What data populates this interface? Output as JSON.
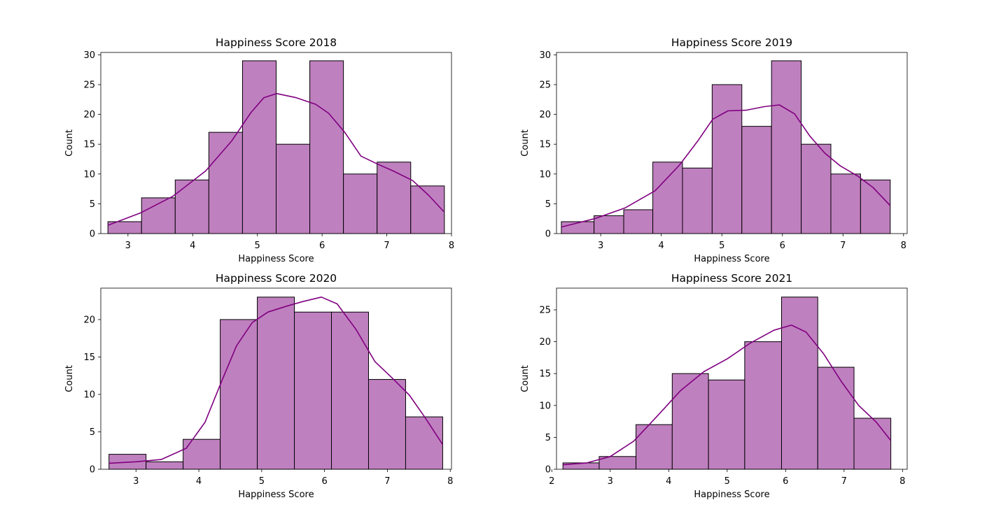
{
  "chart_data": [
    {
      "type": "bar",
      "title": "Happiness Score 2018",
      "xlabel": "Happiness Score",
      "ylabel": "Count",
      "bin_edges": [
        2.69,
        3.21,
        3.73,
        4.25,
        4.77,
        5.29,
        5.81,
        6.33,
        6.85,
        7.37,
        7.89
      ],
      "values": [
        2,
        6,
        9,
        17,
        29,
        15,
        29,
        10,
        12,
        8
      ],
      "kde": [
        [
          2.69,
          1.4
        ],
        [
          3.2,
          3.5
        ],
        [
          3.7,
          6.3
        ],
        [
          4.2,
          10.5
        ],
        [
          4.6,
          15.5
        ],
        [
          4.9,
          20.3
        ],
        [
          5.1,
          22.8
        ],
        [
          5.3,
          23.5
        ],
        [
          5.6,
          22.8
        ],
        [
          5.9,
          21.7
        ],
        [
          6.1,
          20.2
        ],
        [
          6.35,
          17.0
        ],
        [
          6.6,
          13.0
        ],
        [
          6.85,
          11.7
        ],
        [
          7.1,
          10.5
        ],
        [
          7.4,
          8.9
        ],
        [
          7.65,
          6.4
        ],
        [
          7.88,
          3.7
        ]
      ],
      "xlim": [
        2.58,
        8.0
      ],
      "ylim": [
        0,
        30.4
      ],
      "xticks": [
        3,
        4,
        5,
        6,
        7,
        8
      ],
      "yticks": [
        0,
        5,
        10,
        15,
        20,
        25,
        30
      ],
      "color": "#bf80bf",
      "kde_color": "#800080"
    },
    {
      "type": "bar",
      "title": "Happiness Score 2019",
      "xlabel": "Happiness Score",
      "ylabel": "Count",
      "bin_edges": [
        2.35,
        2.89,
        3.38,
        3.86,
        4.35,
        4.84,
        5.33,
        5.82,
        6.31,
        6.8,
        7.29,
        7.78
      ],
      "values": [
        2,
        3,
        4,
        12,
        11,
        25,
        18,
        29,
        15,
        10,
        9
      ],
      "kde": [
        [
          2.35,
          1.1
        ],
        [
          2.9,
          2.5
        ],
        [
          3.4,
          4.3
        ],
        [
          3.9,
          7.2
        ],
        [
          4.3,
          11.5
        ],
        [
          4.6,
          15.5
        ],
        [
          4.85,
          19.2
        ],
        [
          5.1,
          20.6
        ],
        [
          5.4,
          20.7
        ],
        [
          5.7,
          21.3
        ],
        [
          5.95,
          21.6
        ],
        [
          6.2,
          20.1
        ],
        [
          6.45,
          16.4
        ],
        [
          6.7,
          13.5
        ],
        [
          6.95,
          11.4
        ],
        [
          7.25,
          9.6
        ],
        [
          7.5,
          7.7
        ],
        [
          7.78,
          4.7
        ]
      ],
      "xlim": [
        2.27,
        8.06
      ],
      "ylim": [
        0,
        30.4
      ],
      "xticks": [
        3,
        4,
        5,
        6,
        7,
        8
      ],
      "yticks": [
        0,
        5,
        10,
        15,
        20,
        25,
        30
      ],
      "color": "#bf80bf",
      "kde_color": "#800080"
    },
    {
      "type": "bar",
      "title": "Happiness Score 2020",
      "xlabel": "Happiness Score",
      "ylabel": "Count",
      "bin_edges": [
        2.57,
        3.16,
        3.75,
        4.34,
        4.93,
        5.52,
        6.11,
        6.7,
        7.29,
        7.88
      ],
      "values": [
        2,
        1,
        4,
        20,
        23,
        21,
        21,
        12,
        7
      ],
      "kde": [
        [
          2.57,
          0.8
        ],
        [
          3.0,
          1.0
        ],
        [
          3.4,
          1.3
        ],
        [
          3.8,
          2.8
        ],
        [
          4.1,
          6.3
        ],
        [
          4.35,
          11.5
        ],
        [
          4.6,
          16.5
        ],
        [
          4.85,
          19.6
        ],
        [
          5.1,
          21.0
        ],
        [
          5.4,
          21.8
        ],
        [
          5.65,
          22.4
        ],
        [
          5.95,
          23.0
        ],
        [
          6.2,
          22.1
        ],
        [
          6.5,
          18.7
        ],
        [
          6.8,
          14.4
        ],
        [
          7.1,
          12.0
        ],
        [
          7.35,
          9.9
        ],
        [
          7.6,
          6.9
        ],
        [
          7.88,
          3.3
        ]
      ],
      "xlim": [
        2.44,
        8.02
      ],
      "ylim": [
        0,
        24.2
      ],
      "xticks": [
        3,
        4,
        5,
        6,
        7,
        8
      ],
      "yticks": [
        0,
        5,
        10,
        15,
        20
      ],
      "color": "#bf80bf",
      "kde_color": "#800080"
    },
    {
      "type": "bar",
      "title": "Happiness Score 2021",
      "xlabel": "Happiness Score",
      "ylabel": "Count",
      "bin_edges": [
        2.19,
        2.81,
        3.44,
        4.06,
        4.68,
        5.3,
        5.93,
        6.55,
        7.17,
        7.8
      ],
      "values": [
        1,
        2,
        7,
        15,
        14,
        20,
        27,
        16,
        8
      ],
      "kde": [
        [
          2.19,
          0.7
        ],
        [
          2.6,
          1.0
        ],
        [
          3.0,
          2.0
        ],
        [
          3.4,
          4.4
        ],
        [
          3.8,
          8.3
        ],
        [
          4.2,
          12.3
        ],
        [
          4.6,
          15.3
        ],
        [
          5.0,
          17.3
        ],
        [
          5.4,
          19.8
        ],
        [
          5.8,
          21.8
        ],
        [
          6.1,
          22.6
        ],
        [
          6.35,
          21.5
        ],
        [
          6.65,
          18.1
        ],
        [
          6.95,
          13.8
        ],
        [
          7.25,
          10.0
        ],
        [
          7.55,
          7.4
        ],
        [
          7.8,
          4.5
        ]
      ],
      "xlim": [
        2.08,
        8.08
      ],
      "ylim": [
        0,
        28.4
      ],
      "xticks": [
        2,
        3,
        4,
        5,
        6,
        7,
        8
      ],
      "yticks": [
        0,
        5,
        10,
        15,
        20,
        25
      ],
      "color": "#bf80bf",
      "kde_color": "#800080"
    }
  ]
}
